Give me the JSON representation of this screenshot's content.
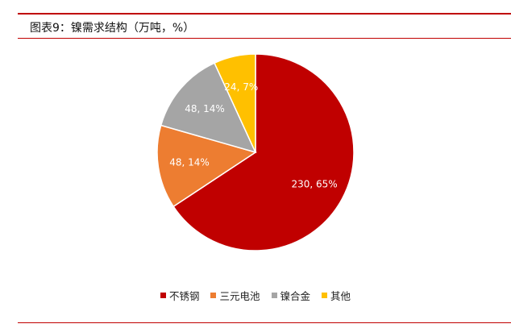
{
  "chart_data": {
    "type": "pie",
    "title": "图表9：镍需求结构（万吨，%）",
    "slices": [
      {
        "name": "不锈钢",
        "value": 230,
        "percent": 65,
        "label": "230, 65%",
        "color": "#c00000"
      },
      {
        "name": "三元电池",
        "value": 48,
        "percent": 14,
        "label": "48, 14%",
        "color": "#ed7d31"
      },
      {
        "name": "镍合金",
        "value": 48,
        "percent": 14,
        "label": "48, 14%",
        "color": "#a5a5a5"
      },
      {
        "name": "其他",
        "value": 24,
        "percent": 7,
        "label": "24, 7%",
        "color": "#ffc000"
      }
    ],
    "legend_position": "bottom"
  }
}
